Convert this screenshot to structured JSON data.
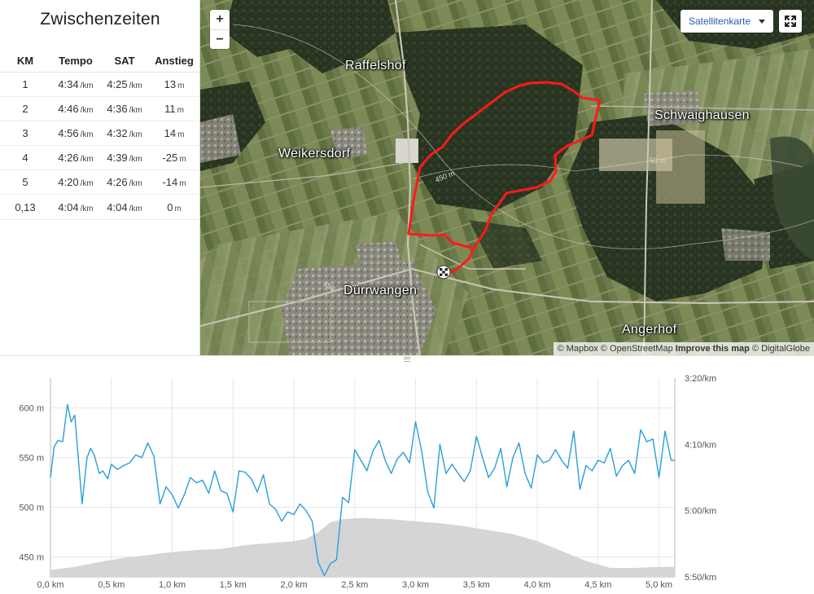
{
  "splits": {
    "title": "Zwischenzeiten",
    "columns": [
      "KM",
      "Tempo",
      "SAT",
      "Anstieg"
    ],
    "rows": [
      {
        "km": "1",
        "tempo": "4:34",
        "sat": "4:25",
        "ascent": "13"
      },
      {
        "km": "2",
        "tempo": "4:46",
        "sat": "4:36",
        "ascent": "11"
      },
      {
        "km": "3",
        "tempo": "4:56",
        "sat": "4:32",
        "ascent": "14"
      },
      {
        "km": "4",
        "tempo": "4:26",
        "sat": "4:39",
        "ascent": "-25"
      },
      {
        "km": "5",
        "tempo": "4:20",
        "sat": "4:26",
        "ascent": "-14"
      },
      {
        "km": "0,13",
        "tempo": "4:04",
        "sat": "4:04",
        "ascent": "0"
      }
    ],
    "pace_unit": "/km",
    "ascent_unit": "m"
  },
  "map": {
    "zoom_in": "+",
    "zoom_out": "−",
    "map_type": "Satellitenkarte",
    "fullscreen_icon": "fullscreen-icon",
    "places": [
      "Raffelshof",
      "Schwaighausen",
      "Weikersdorf",
      "Dürrwangen",
      "Angerhof"
    ],
    "contour_labels": [
      "450 m",
      "450",
      "50 m"
    ],
    "route_color": "#ff1a1a",
    "attribution": {
      "mapbox": "© Mapbox",
      "osm": "© OpenStreetMap",
      "improve": "Improve this map",
      "dg": "© DigitalGlobe"
    }
  },
  "chart_data": {
    "type": "area",
    "x_unit": "km",
    "xlim": [
      0,
      5.13
    ],
    "x_ticks": [
      "0,0 km",
      "0,5 km",
      "1,0 km",
      "1,5 km",
      "2,0 km",
      "2,5 km",
      "3,0 km",
      "3,5 km",
      "4,0 km",
      "4,5 km",
      "5,0 km"
    ],
    "y_left": {
      "ticks": [
        "450 m",
        "500 m",
        "550 m",
        "600 m"
      ],
      "range": [
        430,
        630
      ]
    },
    "y_right": {
      "ticks": [
        "3:20/km",
        "4:10/km",
        "5:00/km",
        "5:50/km"
      ],
      "range_seconds_per_km": [
        200,
        350
      ]
    },
    "grid": true,
    "series": [
      {
        "role": "elevation",
        "color": "#d5d5d5",
        "x": [
          0.0,
          0.2,
          0.4,
          0.6,
          0.8,
          1.0,
          1.2,
          1.4,
          1.5,
          1.6,
          1.8,
          2.0,
          2.1,
          2.2,
          2.3,
          2.4,
          2.5,
          2.6,
          2.8,
          3.0,
          3.2,
          3.4,
          3.6,
          3.8,
          4.0,
          4.2,
          4.4,
          4.6,
          4.8,
          5.0,
          5.13
        ],
        "values": [
          437,
          440,
          445,
          449,
          452,
          455,
          457,
          458,
          460,
          462,
          464,
          466,
          468,
          475,
          485,
          488,
          489,
          489,
          488,
          486,
          484,
          481,
          477,
          473,
          466,
          456,
          446,
          439,
          439,
          440,
          440
        ]
      },
      {
        "role": "pace",
        "color": "#2a9fd8",
        "x": [
          0.0,
          0.03,
          0.06,
          0.1,
          0.14,
          0.17,
          0.2,
          0.23,
          0.26,
          0.28,
          0.3,
          0.33,
          0.36,
          0.4,
          0.43,
          0.47,
          0.5,
          0.55,
          0.6,
          0.65,
          0.7,
          0.75,
          0.8,
          0.85,
          0.9,
          0.95,
          1.0,
          1.05,
          1.1,
          1.15,
          1.2,
          1.25,
          1.3,
          1.35,
          1.4,
          1.45,
          1.5,
          1.55,
          1.6,
          1.65,
          1.7,
          1.75,
          1.8,
          1.85,
          1.9,
          1.95,
          2.0,
          2.05,
          2.1,
          2.15,
          2.2,
          2.25,
          2.3,
          2.35,
          2.4,
          2.45,
          2.5,
          2.55,
          2.6,
          2.65,
          2.7,
          2.75,
          2.8,
          2.85,
          2.9,
          2.95,
          3.0,
          3.05,
          3.1,
          3.15,
          3.2,
          3.25,
          3.3,
          3.35,
          3.4,
          3.45,
          3.5,
          3.55,
          3.6,
          3.65,
          3.7,
          3.75,
          3.8,
          3.85,
          3.9,
          3.95,
          4.0,
          4.05,
          4.1,
          4.15,
          4.2,
          4.25,
          4.3,
          4.35,
          4.4,
          4.45,
          4.5,
          4.55,
          4.6,
          4.65,
          4.7,
          4.75,
          4.8,
          4.85,
          4.9,
          4.95,
          5.0,
          5.05,
          5.1,
          5.13
        ],
        "values": [
          275,
          252,
          247,
          248,
          220,
          233,
          228,
          262,
          295,
          277,
          260,
          253,
          258,
          272,
          270,
          276,
          265,
          269,
          266,
          264,
          258,
          260,
          249,
          259,
          295,
          282,
          288,
          298,
          288,
          275,
          279,
          277,
          287,
          270,
          285,
          287,
          301,
          270,
          271,
          276,
          286,
          273,
          295,
          299,
          308,
          301,
          303,
          295,
          300,
          308,
          339,
          349,
          340,
          337,
          290,
          294,
          254,
          262,
          270,
          255,
          247,
          262,
          272,
          261,
          256,
          264,
          233,
          255,
          286,
          298,
          250,
          272,
          265,
          272,
          278,
          270,
          244,
          260,
          275,
          268,
          253,
          282,
          260,
          249,
          272,
          283,
          258,
          264,
          262,
          254,
          262,
          268,
          240,
          284,
          266,
          270,
          262,
          264,
          253,
          274,
          266,
          262,
          272,
          239,
          248,
          246,
          275,
          240,
          262,
          262
        ]
      }
    ]
  }
}
